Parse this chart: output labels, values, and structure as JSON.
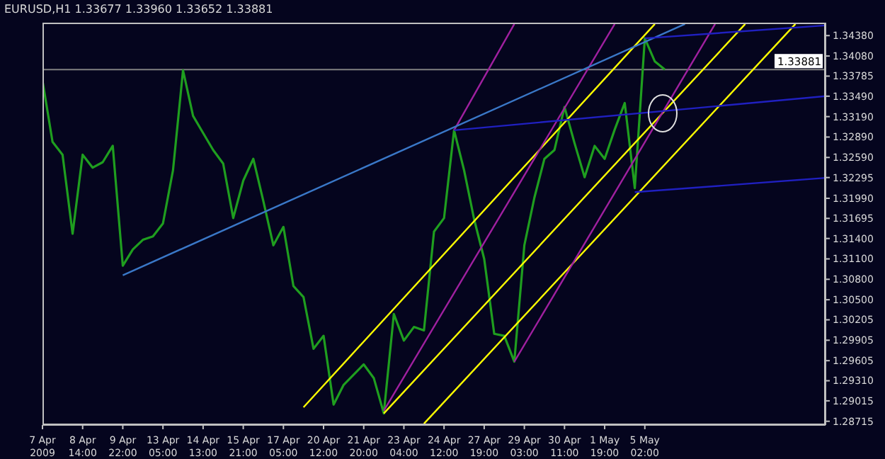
{
  "chart_data": {
    "type": "line",
    "title": "EURUSD,H1 1.33677 1.33960 1.33652 1.33881",
    "categories": [
      "7 Apr 2009",
      null,
      null,
      null,
      "8 Apr 14:00",
      null,
      null,
      null,
      "9 Apr 22:00",
      null,
      null,
      null,
      "13 Apr 05:00",
      null,
      null,
      null,
      "14 Apr 13:00",
      null,
      null,
      null,
      "15 Apr 21:00",
      null,
      null,
      null,
      "17 Apr 05:00",
      null,
      null,
      null,
      "20 Apr 12:00",
      null,
      null,
      null,
      "21 Apr 20:00",
      null,
      null,
      null,
      "23 Apr 04:00",
      null,
      null,
      null,
      "24 Apr 12:00",
      null,
      null,
      null,
      "27 Apr 19:00",
      null,
      null,
      null,
      "29 Apr 03:00",
      null,
      null,
      null,
      "30 Apr 11:00",
      null,
      null,
      null,
      "1 May 19:00",
      null,
      null,
      null,
      "5 May 02:00",
      null,
      null,
      null,
      null,
      null,
      null,
      null,
      null,
      null,
      null,
      null,
      null,
      null,
      null,
      null,
      null,
      null,
      null
    ],
    "series": [
      {
        "color": "#1f9e1f",
        "values": [
          1.3372,
          1.3282,
          1.3263,
          1.3147,
          1.3263,
          1.3244,
          1.3252,
          1.3276,
          1.31,
          1.3124,
          1.3138,
          1.3143,
          1.3162,
          1.324,
          1.3387,
          1.332,
          1.3295,
          1.327,
          1.325,
          1.317,
          1.3225,
          1.3257,
          1.3195,
          1.313,
          1.3157,
          1.307,
          1.3054,
          1.2978,
          1.2997,
          1.2896,
          1.2925,
          1.294,
          1.2955,
          1.2935,
          1.2883,
          1.3029,
          1.299,
          1.301,
          1.3005,
          1.315,
          1.317,
          1.3299,
          1.324,
          1.3168,
          1.311,
          1.3,
          1.2997,
          1.2959,
          1.313,
          1.32,
          1.3257,
          1.327,
          1.3333,
          1.328,
          1.323,
          1.3276,
          1.3257,
          1.33,
          1.3339,
          1.3214,
          1.3434,
          1.34,
          1.3388,
          null,
          null,
          null,
          null,
          null,
          null,
          null,
          null,
          null,
          null,
          null,
          null,
          null,
          null,
          null,
          null
        ]
      },
      {
        "color": "#ffff00",
        "values": [
          null,
          null,
          null,
          null,
          null,
          null,
          null,
          null,
          null,
          null,
          null,
          null,
          null,
          null,
          null,
          null,
          null,
          null,
          null,
          null,
          null,
          null,
          null,
          null,
          null,
          null,
          1.2892,
          null,
          null,
          null,
          null,
          null,
          null,
          null,
          null,
          null,
          null,
          null,
          null,
          null,
          null,
          null,
          null,
          null,
          null,
          null,
          null,
          null,
          null,
          null,
          null,
          null,
          null,
          null,
          null,
          null,
          null,
          null,
          null,
          null,
          null,
          1.3455,
          null,
          null,
          null,
          null,
          null,
          null,
          null,
          null,
          null,
          null,
          null,
          null,
          null,
          null,
          null,
          null,
          null
        ]
      },
      {
        "color": "#ffff00",
        "values": [
          null,
          null,
          null,
          null,
          null,
          null,
          null,
          null,
          null,
          null,
          null,
          null,
          null,
          null,
          null,
          null,
          null,
          null,
          null,
          null,
          null,
          null,
          null,
          null,
          null,
          null,
          null,
          null,
          null,
          null,
          null,
          null,
          null,
          null,
          1.2883,
          null,
          null,
          null,
          null,
          null,
          null,
          null,
          null,
          null,
          null,
          null,
          null,
          null,
          null,
          null,
          null,
          null,
          null,
          null,
          null,
          null,
          null,
          null,
          null,
          null,
          null,
          null,
          null,
          null,
          null,
          null,
          null,
          null,
          null,
          null,
          1.3455,
          null,
          null,
          null,
          null,
          null,
          null,
          null,
          null
        ]
      },
      {
        "color": "#ffff00",
        "values": [
          null,
          null,
          null,
          null,
          null,
          null,
          null,
          null,
          null,
          null,
          null,
          null,
          null,
          null,
          null,
          null,
          null,
          null,
          null,
          null,
          null,
          null,
          null,
          null,
          null,
          null,
          null,
          null,
          null,
          null,
          null,
          null,
          null,
          null,
          null,
          null,
          null,
          null,
          1.2868,
          null,
          null,
          null,
          null,
          null,
          null,
          null,
          null,
          null,
          null,
          null,
          null,
          null,
          null,
          null,
          null,
          null,
          null,
          null,
          null,
          null,
          null,
          null,
          null,
          null,
          null,
          null,
          null,
          null,
          null,
          null,
          null,
          null,
          null,
          null,
          null,
          1.3455,
          null,
          null,
          null
        ]
      },
      {
        "color": "#a020a0",
        "values": [
          null,
          null,
          null,
          null,
          null,
          null,
          null,
          null,
          null,
          null,
          null,
          null,
          null,
          null,
          null,
          null,
          null,
          null,
          null,
          null,
          null,
          null,
          null,
          null,
          null,
          null,
          null,
          null,
          null,
          null,
          null,
          null,
          null,
          null,
          1.2887,
          null,
          null,
          null,
          null,
          null,
          null,
          null,
          null,
          null,
          null,
          null,
          null,
          null,
          null,
          null,
          null,
          null,
          null,
          null,
          null,
          null,
          null,
          1.3455,
          null,
          null,
          null,
          null,
          null,
          null,
          null,
          null,
          null,
          null,
          null,
          null,
          null,
          null,
          null,
          null,
          null,
          null,
          null,
          null,
          null
        ]
      },
      {
        "color": "#a020a0",
        "values": [
          null,
          null,
          null,
          null,
          null,
          null,
          null,
          null,
          null,
          null,
          null,
          null,
          null,
          null,
          null,
          null,
          null,
          null,
          null,
          null,
          null,
          null,
          null,
          null,
          null,
          null,
          null,
          null,
          null,
          null,
          null,
          null,
          null,
          null,
          null,
          null,
          null,
          null,
          null,
          null,
          null,
          null,
          null,
          null,
          null,
          null,
          null,
          1.2959,
          null,
          null,
          null,
          null,
          null,
          null,
          null,
          null,
          null,
          null,
          null,
          null,
          null,
          null,
          null,
          null,
          null,
          null,
          null,
          1.3455,
          null,
          null,
          null,
          null,
          null,
          null,
          null,
          null,
          null,
          null,
          null
        ]
      },
      {
        "color": "#a020a0",
        "values": [
          null,
          null,
          null,
          null,
          null,
          null,
          null,
          null,
          null,
          null,
          null,
          null,
          null,
          null,
          null,
          null,
          null,
          null,
          null,
          null,
          null,
          null,
          null,
          null,
          null,
          null,
          null,
          null,
          null,
          null,
          null,
          null,
          null,
          null,
          null,
          null,
          null,
          null,
          null,
          null,
          null,
          1.3299,
          null,
          null,
          null,
          null,
          null,
          1.3455,
          null,
          null,
          null,
          null,
          null,
          null,
          null,
          null,
          null,
          null,
          null,
          null,
          null,
          null,
          null,
          null,
          null,
          null,
          null,
          null,
          null,
          null,
          null,
          null,
          null,
          null,
          null,
          null,
          null,
          null,
          null
        ]
      },
      {
        "color": "#3a78c8",
        "values": [
          null,
          null,
          null,
          null,
          null,
          null,
          null,
          null,
          1.3086,
          null,
          null,
          null,
          null,
          null,
          null,
          null,
          null,
          null,
          null,
          null,
          null,
          null,
          null,
          null,
          null,
          null,
          null,
          null,
          null,
          null,
          null,
          null,
          null,
          null,
          null,
          null,
          null,
          null,
          null,
          null,
          null,
          null,
          null,
          null,
          null,
          null,
          null,
          null,
          null,
          null,
          null,
          null,
          null,
          null,
          null,
          null,
          null,
          null,
          null,
          null,
          null,
          null,
          null,
          null,
          1.3455,
          null,
          null,
          null,
          null,
          null,
          null,
          null,
          null,
          null,
          null,
          null,
          null,
          null,
          null
        ]
      },
      {
        "color": "#2020c0",
        "values": [
          null,
          null,
          null,
          null,
          null,
          null,
          null,
          null,
          null,
          null,
          null,
          null,
          null,
          null,
          null,
          null,
          null,
          null,
          null,
          null,
          null,
          null,
          null,
          null,
          null,
          null,
          null,
          null,
          null,
          null,
          null,
          null,
          null,
          null,
          null,
          null,
          null,
          null,
          null,
          null,
          null,
          1.3299,
          null,
          null,
          null,
          null,
          null,
          null,
          null,
          null,
          null,
          null,
          null,
          null,
          null,
          null,
          null,
          null,
          null,
          null,
          null,
          null,
          null,
          null,
          null,
          null,
          null,
          null,
          null,
          null,
          null,
          null,
          null,
          null,
          null,
          null,
          null,
          null,
          1.3349
        ]
      },
      {
        "color": "#2020c0",
        "values": [
          null,
          null,
          null,
          null,
          null,
          null,
          null,
          null,
          null,
          null,
          null,
          null,
          null,
          null,
          null,
          null,
          null,
          null,
          null,
          null,
          null,
          null,
          null,
          null,
          null,
          null,
          null,
          null,
          null,
          null,
          null,
          null,
          null,
          null,
          null,
          null,
          null,
          null,
          null,
          null,
          null,
          null,
          null,
          null,
          null,
          null,
          null,
          null,
          null,
          null,
          null,
          null,
          null,
          null,
          null,
          null,
          null,
          null,
          null,
          1.3208,
          null,
          null,
          null,
          null,
          null,
          null,
          null,
          null,
          null,
          null,
          null,
          null,
          null,
          null,
          null,
          null,
          null,
          null,
          1.3229
        ]
      },
      {
        "color": "#2020c0",
        "values": [
          null,
          null,
          null,
          null,
          null,
          null,
          null,
          null,
          null,
          null,
          null,
          null,
          null,
          null,
          null,
          null,
          null,
          null,
          null,
          null,
          null,
          null,
          null,
          null,
          null,
          null,
          null,
          null,
          null,
          null,
          null,
          null,
          null,
          null,
          null,
          null,
          null,
          null,
          null,
          null,
          null,
          null,
          null,
          null,
          null,
          null,
          null,
          null,
          null,
          null,
          null,
          null,
          null,
          null,
          null,
          null,
          null,
          null,
          null,
          null,
          1.3434,
          null,
          null,
          null,
          null,
          null,
          null,
          null,
          null,
          null,
          null,
          null,
          null,
          null,
          null,
          null,
          null,
          null,
          1.3453
        ]
      }
    ],
    "ylim": [
      1.2866,
      1.3457
    ],
    "yticks": [
      {
        "value": 1.28715,
        "label": "1.28715"
      },
      {
        "value": 1.29015,
        "label": "1.29015"
      },
      {
        "value": 1.2931,
        "label": "1.29310"
      },
      {
        "value": 1.29605,
        "label": "1.29605"
      },
      {
        "value": 1.29905,
        "label": "1.29905"
      },
      {
        "value": 1.30205,
        "label": "1.30205"
      },
      {
        "value": 1.305,
        "label": "1.30500"
      },
      {
        "value": 1.308,
        "label": "1.30800"
      },
      {
        "value": 1.311,
        "label": "1.31100"
      },
      {
        "value": 1.314,
        "label": "1.31400"
      },
      {
        "value": 1.31695,
        "label": "1.31695"
      },
      {
        "value": 1.3199,
        "label": "1.31990"
      },
      {
        "value": 1.32295,
        "label": "1.32295"
      },
      {
        "value": 1.3259,
        "label": "1.32590"
      },
      {
        "value": 1.3289,
        "label": "1.32890"
      },
      {
        "value": 1.3319,
        "label": "1.33190"
      },
      {
        "value": 1.3349,
        "label": "1.33490"
      },
      {
        "value": 1.33785,
        "label": "1.33785"
      },
      {
        "value": 1.3408,
        "label": "1.34080"
      },
      {
        "value": 1.3438,
        "label": "1.34380"
      }
    ],
    "ref_lines": [
      {
        "axis": "y",
        "value": 1.33881,
        "label": "1.33881",
        "color": "#808080"
      }
    ],
    "marker": "none",
    "line_style": "solid"
  }
}
